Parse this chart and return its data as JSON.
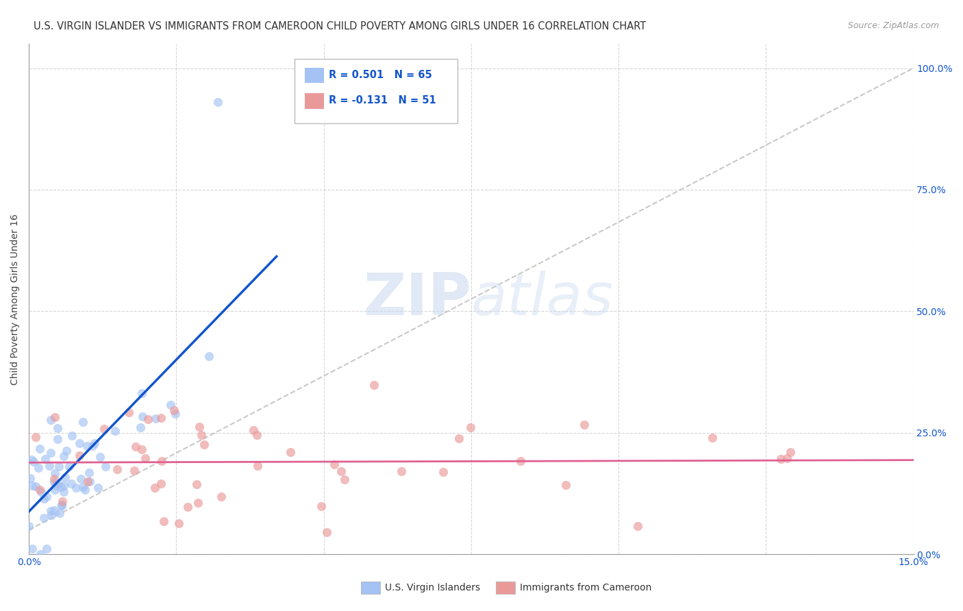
{
  "title": "U.S. VIRGIN ISLANDER VS IMMIGRANTS FROM CAMEROON CHILD POVERTY AMONG GIRLS UNDER 16 CORRELATION CHART",
  "source": "Source: ZipAtlas.com",
  "ylabel": "Child Poverty Among Girls Under 16",
  "xlim": [
    0.0,
    0.15
  ],
  "ylim": [
    0.0,
    1.05
  ],
  "ytick_positions": [
    0.0,
    0.25,
    0.5,
    0.75,
    1.0
  ],
  "ytick_labels_right": [
    "0.0%",
    "25.0%",
    "50.0%",
    "75.0%",
    "100.0%"
  ],
  "xtick_first": "0.0%",
  "xtick_last": "15.0%",
  "legend_r1": "0.501",
  "legend_n1": "65",
  "legend_r2": "-0.131",
  "legend_n2": "51",
  "color_blue": "#a4c2f4",
  "color_pink": "#ea9999",
  "color_line_blue": "#1155cc",
  "color_line_pink": "#e06090",
  "watermark_zip": "ZIP",
  "watermark_atlas": "atlas",
  "background_color": "#ffffff",
  "grid_color": "#cccccc",
  "title_fontsize": 10.5,
  "axis_label_fontsize": 10,
  "tick_color": "#1155cc",
  "tick_fontsize": 10,
  "scatter_alpha": 0.65,
  "scatter_size": 90,
  "seed": 7
}
